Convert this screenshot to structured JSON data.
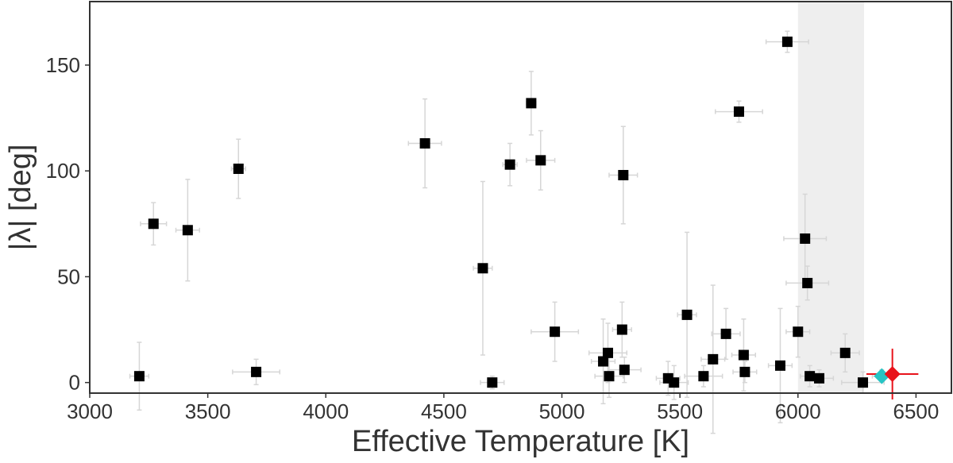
{
  "chart_data": {
    "type": "scatter",
    "title": "",
    "xlabel": "Effective Temperature [K]",
    "ylabel": "|λ| [deg]",
    "xlim": [
      3000,
      6650
    ],
    "ylim": [
      -5,
      180
    ],
    "xticks": [
      3000,
      3500,
      4000,
      4500,
      5000,
      5500,
      6000,
      6500
    ],
    "yticks": [
      0,
      50,
      100,
      150
    ],
    "grid": false,
    "legend": "none",
    "shaded_region": {
      "x": [
        6000,
        6280
      ],
      "color": "#eeeeee"
    },
    "colors": {
      "points": "#000000",
      "errorbars": "#d6d6d6",
      "highlight": "#e8131b",
      "highlight2": "#26c4c4"
    },
    "series": [
      {
        "marker": "square",
        "color": "#000000",
        "points": [
          {
            "x": 3210,
            "y": 3,
            "xerr": 40,
            "yerr": 16
          },
          {
            "x": 3270,
            "y": 75,
            "xerr": 55,
            "yerr": 10
          },
          {
            "x": 3415,
            "y": 72,
            "xerr": 50,
            "yerr": 24
          },
          {
            "x": 3630,
            "y": 101,
            "xerr": 30,
            "yerr": 14
          },
          {
            "x": 3705,
            "y": 5,
            "xerr": 100,
            "yerr": 6
          },
          {
            "x": 4420,
            "y": 113,
            "xerr": 70,
            "yerr": 21
          },
          {
            "x": 4665,
            "y": 54,
            "xerr": 40,
            "yerr": 41
          },
          {
            "x": 4705,
            "y": 0,
            "xerr": 50,
            "yerr": 3
          },
          {
            "x": 4780,
            "y": 103,
            "xerr": 30,
            "yerr": 10
          },
          {
            "x": 4870,
            "y": 132,
            "xerr": 20,
            "yerr": 15
          },
          {
            "x": 4910,
            "y": 105,
            "xerr": 60,
            "yerr": 14
          },
          {
            "x": 4970,
            "y": 24,
            "xerr": 100,
            "yerr": 14
          },
          {
            "x": 5175,
            "y": 10,
            "xerr": 50,
            "yerr": 20
          },
          {
            "x": 5195,
            "y": 14,
            "xerr": 80,
            "yerr": 14
          },
          {
            "x": 5200,
            "y": 3,
            "xerr": 60,
            "yerr": 10
          },
          {
            "x": 5255,
            "y": 25,
            "xerr": 40,
            "yerr": 13
          },
          {
            "x": 5260,
            "y": 98,
            "xerr": 60,
            "yerr": 23
          },
          {
            "x": 5265,
            "y": 6,
            "xerr": 70,
            "yerr": 6
          },
          {
            "x": 5450,
            "y": 2,
            "xerr": 50,
            "yerr": 8
          },
          {
            "x": 5475,
            "y": 0,
            "xerr": 60,
            "yerr": 8
          },
          {
            "x": 5530,
            "y": 32,
            "xerr": 40,
            "yerr": 39
          },
          {
            "x": 5600,
            "y": 3,
            "xerr": 80,
            "yerr": 5
          },
          {
            "x": 5640,
            "y": 11,
            "xerr": 50,
            "yerr": 35
          },
          {
            "x": 5695,
            "y": 23,
            "xerr": 60,
            "yerr": 12
          },
          {
            "x": 5750,
            "y": 128,
            "xerr": 100,
            "yerr": 5
          },
          {
            "x": 5770,
            "y": 13,
            "xerr": 50,
            "yerr": 17
          },
          {
            "x": 5775,
            "y": 5,
            "xerr": 50,
            "yerr": 5
          },
          {
            "x": 5925,
            "y": 8,
            "xerr": 50,
            "yerr": 27
          },
          {
            "x": 5955,
            "y": 161,
            "xerr": 90,
            "yerr": 5
          },
          {
            "x": 6000,
            "y": 24,
            "xerr": 50,
            "yerr": 12
          },
          {
            "x": 6030,
            "y": 68,
            "xerr": 90,
            "yerr": 21
          },
          {
            "x": 6040,
            "y": 47,
            "xerr": 90,
            "yerr": 8
          },
          {
            "x": 6050,
            "y": 3,
            "xerr": 40,
            "yerr": 5
          },
          {
            "x": 6090,
            "y": 2,
            "xerr": 60,
            "yerr": 4
          },
          {
            "x": 6200,
            "y": 14,
            "xerr": 60,
            "yerr": 9
          },
          {
            "x": 6275,
            "y": 0,
            "xerr": 90,
            "yerr": 5
          }
        ]
      },
      {
        "marker": "diamond",
        "color": "#26c4c4",
        "points": [
          {
            "x": 6355,
            "y": 3,
            "xerr": 40,
            "yerr": 3
          }
        ]
      },
      {
        "marker": "diamond",
        "color": "#e8131b",
        "points": [
          {
            "x": 6400,
            "y": 4,
            "xerr": 110,
            "yerr": 12
          }
        ]
      }
    ]
  }
}
